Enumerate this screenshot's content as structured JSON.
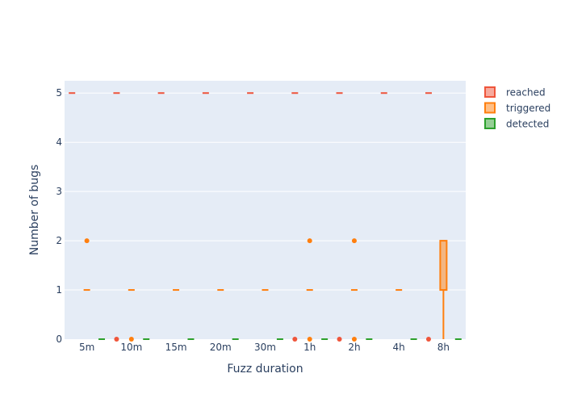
{
  "chart_data": {
    "type": "box",
    "title": "",
    "xlabel": "Fuzz duration",
    "ylabel": "Number of bugs",
    "categories": [
      "5m",
      "10m",
      "15m",
      "20m",
      "30m",
      "1h",
      "2h",
      "4h",
      "8h"
    ],
    "ylim": [
      0,
      5.25
    ],
    "yticks": [
      0,
      1,
      2,
      3,
      4,
      5
    ],
    "grid": true,
    "legend_position": "top-right",
    "series": [
      {
        "name": "reached",
        "color": "#ef553b",
        "boxes": [
          {
            "q1": 5,
            "median": 5,
            "q3": 5,
            "lower": 5,
            "upper": 5,
            "outliers": []
          },
          {
            "q1": 5,
            "median": 5,
            "q3": 5,
            "lower": 5,
            "upper": 5,
            "outliers": [
              0
            ]
          },
          {
            "q1": 5,
            "median": 5,
            "q3": 5,
            "lower": 5,
            "upper": 5,
            "outliers": []
          },
          {
            "q1": 5,
            "median": 5,
            "q3": 5,
            "lower": 5,
            "upper": 5,
            "outliers": []
          },
          {
            "q1": 5,
            "median": 5,
            "q3": 5,
            "lower": 5,
            "upper": 5,
            "outliers": []
          },
          {
            "q1": 5,
            "median": 5,
            "q3": 5,
            "lower": 5,
            "upper": 5,
            "outliers": [
              0
            ]
          },
          {
            "q1": 5,
            "median": 5,
            "q3": 5,
            "lower": 5,
            "upper": 5,
            "outliers": [
              0
            ]
          },
          {
            "q1": 5,
            "median": 5,
            "q3": 5,
            "lower": 5,
            "upper": 5,
            "outliers": []
          },
          {
            "q1": 5,
            "median": 5,
            "q3": 5,
            "lower": 5,
            "upper": 5,
            "outliers": [
              0
            ]
          }
        ]
      },
      {
        "name": "triggered",
        "color": "#ff7f0e",
        "boxes": [
          {
            "q1": 1,
            "median": 1,
            "q3": 1,
            "lower": 1,
            "upper": 1,
            "outliers": [
              2
            ]
          },
          {
            "q1": 1,
            "median": 1,
            "q3": 1,
            "lower": 1,
            "upper": 1,
            "outliers": [
              0
            ]
          },
          {
            "q1": 1,
            "median": 1,
            "q3": 1,
            "lower": 1,
            "upper": 1,
            "outliers": []
          },
          {
            "q1": 1,
            "median": 1,
            "q3": 1,
            "lower": 1,
            "upper": 1,
            "outliers": []
          },
          {
            "q1": 1,
            "median": 1,
            "q3": 1,
            "lower": 1,
            "upper": 1,
            "outliers": []
          },
          {
            "q1": 1,
            "median": 1,
            "q3": 1,
            "lower": 1,
            "upper": 1,
            "outliers": [
              2,
              0
            ]
          },
          {
            "q1": 1,
            "median": 1,
            "q3": 1,
            "lower": 1,
            "upper": 1,
            "outliers": [
              2,
              0
            ]
          },
          {
            "q1": 1,
            "median": 1,
            "q3": 1,
            "lower": 1,
            "upper": 1,
            "outliers": []
          },
          {
            "q1": 1,
            "median": 1,
            "q3": 2,
            "lower": 0,
            "upper": 2,
            "outliers": []
          }
        ]
      },
      {
        "name": "detected",
        "color": "#2ca02c",
        "boxes": [
          {
            "q1": 0,
            "median": 0,
            "q3": 0,
            "lower": 0,
            "upper": 0,
            "outliers": []
          },
          {
            "q1": 0,
            "median": 0,
            "q3": 0,
            "lower": 0,
            "upper": 0,
            "outliers": []
          },
          {
            "q1": 0,
            "median": 0,
            "q3": 0,
            "lower": 0,
            "upper": 0,
            "outliers": []
          },
          {
            "q1": 0,
            "median": 0,
            "q3": 0,
            "lower": 0,
            "upper": 0,
            "outliers": []
          },
          {
            "q1": 0,
            "median": 0,
            "q3": 0,
            "lower": 0,
            "upper": 0,
            "outliers": []
          },
          {
            "q1": 0,
            "median": 0,
            "q3": 0,
            "lower": 0,
            "upper": 0,
            "outliers": []
          },
          {
            "q1": 0,
            "median": 0,
            "q3": 0,
            "lower": 0,
            "upper": 0,
            "outliers": []
          },
          {
            "q1": 0,
            "median": 0,
            "q3": 0,
            "lower": 0,
            "upper": 0,
            "outliers": []
          },
          {
            "q1": 0,
            "median": 0,
            "q3": 0,
            "lower": 0,
            "upper": 0,
            "outliers": []
          }
        ]
      }
    ]
  },
  "colors": {
    "plot_background": "#e5ecf6",
    "grid": "#ffffff",
    "text": "#2a3f5f"
  }
}
